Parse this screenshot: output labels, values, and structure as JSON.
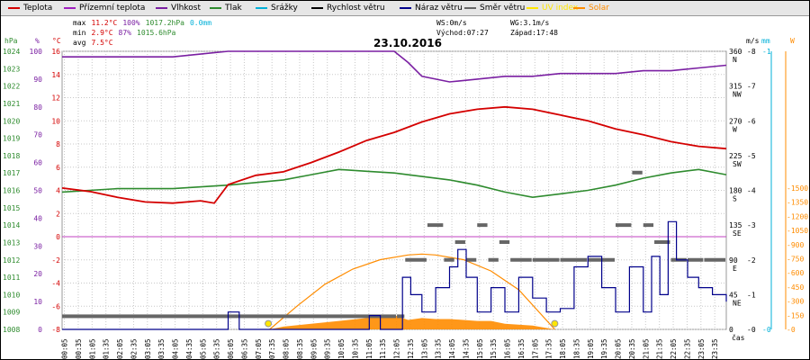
{
  "legend": [
    {
      "label": "Teplota",
      "color": "#d40000"
    },
    {
      "label": "Přízemní teplota",
      "color": "#a020c0"
    },
    {
      "label": "Vlhkost",
      "color": "#7a1fa2"
    },
    {
      "label": "Tlak",
      "color": "#2e8b2e"
    },
    {
      "label": "Srážky",
      "color": "#00b0d8"
    },
    {
      "label": "Rychlost větru",
      "color": "#000000"
    },
    {
      "label": "Náraz větru",
      "color": "#00008b"
    },
    {
      "label": "Směr větru",
      "color": "#666666"
    },
    {
      "label": "UV index",
      "color": "#ffe600"
    },
    {
      "label": "Solar",
      "color": "#ff8c00"
    }
  ],
  "stats": {
    "max": {
      "label": "max",
      "temp": "11.2°C",
      "hum": "100%",
      "press": "1017.2hPa",
      "rain": "0.0mm"
    },
    "min": {
      "label": "min",
      "temp": "2.9°C",
      "hum": "87%",
      "press": "1015.6hPa"
    },
    "avg": {
      "label": "avg",
      "temp": "7.5°C"
    },
    "ws": "WS:0m/s",
    "wg": "WG:3.1m/s",
    "sunrise": "Východ:07:27",
    "sunset": "Západ:17:48"
  },
  "chart_data": {
    "type": "line",
    "title": "23.10.2016",
    "x_unit_label": "čas",
    "time_ticks": [
      "00:05",
      "00:35",
      "01:05",
      "01:35",
      "02:05",
      "02:35",
      "03:05",
      "03:35",
      "04:05",
      "04:35",
      "05:05",
      "05:35",
      "06:05",
      "06:35",
      "07:05",
      "07:35",
      "08:05",
      "08:35",
      "09:05",
      "09:35",
      "10:05",
      "10:35",
      "11:05",
      "11:35",
      "12:05",
      "12:35",
      "13:05",
      "13:35",
      "14:05",
      "14:35",
      "15:05",
      "15:35",
      "16:05",
      "16:35",
      "17:05",
      "17:35",
      "18:05",
      "18:35",
      "19:05",
      "19:35",
      "20:05",
      "20:35",
      "21:05",
      "21:35",
      "22:05",
      "22:35",
      "23:05",
      "23:35"
    ],
    "axes": {
      "pressure_hpa": {
        "label": "hPa",
        "min": 1008,
        "max": 1024,
        "ticks": [
          "1024",
          "1023",
          "1022",
          "1021",
          "1020",
          "1019",
          "1018",
          "1017",
          "1016",
          "1015",
          "1014",
          "1013",
          "1012",
          "1011",
          "1010",
          "1009",
          "1008"
        ],
        "color": "#2e8b2e"
      },
      "humidity_pct": {
        "label": "%",
        "ticks": [
          "100",
          "90",
          "80",
          "70",
          "60",
          "50",
          "40",
          "30",
          "20",
          "10",
          "0"
        ],
        "color": "#7a1fa2"
      },
      "temperature_c": {
        "label": "°C",
        "min": -8,
        "max": 16,
        "ticks": [
          "16",
          "14",
          "12",
          "10",
          "8",
          "6",
          "4",
          "2",
          "0",
          "-2",
          "-4",
          "-6",
          "-8"
        ],
        "color": "#d40000"
      },
      "wind_direction": {
        "ticks": [
          "360",
          "N",
          "315",
          "NW",
          "270",
          "W",
          "225",
          "SW",
          "180",
          "S",
          "135",
          "SE",
          "90",
          "E",
          "45",
          "NE",
          "0"
        ]
      },
      "wind_speed_ms": {
        "label": "m/s",
        "ticks": [
          "8",
          "7",
          "6",
          "5",
          "4",
          "3",
          "2",
          "1",
          "0"
        ]
      },
      "rain_mm": {
        "label": "mm",
        "ticks": [
          "1",
          "0"
        ],
        "color": "#00b0d8"
      },
      "solar_w": {
        "label": "W",
        "ticks": [
          "1500",
          "1350",
          "1200",
          "1050",
          "900",
          "750",
          "600",
          "450",
          "300",
          "150",
          "0"
        ],
        "color": "#ff8c00"
      }
    },
    "series": [
      {
        "name": "Teplota",
        "unit": "°C",
        "color": "#d40000",
        "hours": [
          0,
          1,
          2,
          3,
          4,
          5,
          5.5,
          6,
          7,
          8,
          9,
          10,
          11,
          12,
          13,
          14,
          15,
          16,
          17,
          18,
          19,
          20,
          21,
          22,
          23,
          24
        ],
        "values": [
          4.2,
          3.9,
          3.4,
          3.0,
          2.9,
          3.1,
          2.9,
          4.5,
          5.3,
          5.6,
          6.4,
          7.3,
          8.3,
          9.0,
          9.9,
          10.6,
          11.0,
          11.2,
          11.0,
          10.5,
          10.0,
          9.3,
          8.8,
          8.2,
          7.8,
          7.6
        ]
      },
      {
        "name": "Vlhkost",
        "unit": "%",
        "color": "#7a1fa2",
        "hours": [
          0,
          2,
          4,
          5,
          6,
          8,
          10,
          12,
          12.5,
          13,
          14,
          15,
          16,
          17,
          18,
          19,
          20,
          21,
          22,
          23,
          24
        ],
        "values": [
          98,
          98,
          98,
          99,
          100,
          100,
          100,
          100,
          96,
          91,
          89,
          90,
          91,
          91,
          92,
          92,
          92,
          93,
          93,
          94,
          95
        ]
      },
      {
        "name": "Tlak",
        "unit": "hPa",
        "color": "#2e8b2e",
        "hours": [
          0,
          2,
          4,
          6,
          8,
          9,
          10,
          11,
          12,
          13,
          14,
          15,
          16,
          17,
          18,
          19,
          20,
          21,
          22,
          23,
          24
        ],
        "values": [
          1015.9,
          1016.1,
          1016.1,
          1016.3,
          1016.6,
          1016.9,
          1017.2,
          1017.1,
          1017.0,
          1016.8,
          1016.6,
          1016.3,
          1015.9,
          1015.6,
          1015.8,
          1016.0,
          1016.3,
          1016.7,
          1017.0,
          1017.2,
          1016.9
        ]
      },
      {
        "name": "Náraz větru",
        "unit": "m/s",
        "color": "#00008b",
        "hours": [
          0,
          5.9,
          6.0,
          6.3,
          6.4,
          11.0,
          11.1,
          11.4,
          11.5,
          12.0,
          12.3,
          12.6,
          13.0,
          13.5,
          14.0,
          14.3,
          14.6,
          15.0,
          15.5,
          16.0,
          16.5,
          17.0,
          17.5,
          18.0,
          18.5,
          19.0,
          19.5,
          20.0,
          20.5,
          21.0,
          21.3,
          21.6,
          21.9,
          22.2,
          22.6,
          23.0,
          23.5,
          24.0
        ],
        "values": [
          0,
          0,
          0.5,
          0.5,
          0,
          0,
          0.4,
          0.4,
          0,
          0,
          1.5,
          1.0,
          0.5,
          1.2,
          1.8,
          2.3,
          1.5,
          0.5,
          1.2,
          0.5,
          1.5,
          0.9,
          0.5,
          0.6,
          1.8,
          2.1,
          1.2,
          0.5,
          1.8,
          0.5,
          2.1,
          1.0,
          3.1,
          2.0,
          1.5,
          1.2,
          1.0,
          0.8
        ]
      },
      {
        "name": "Směr větru",
        "unit": "°",
        "color": "#666666",
        "hours": [
          0,
          12.1,
          12.4,
          13.2,
          13.8,
          14.2,
          14.6,
          15.0,
          15.4,
          15.8,
          16.2,
          17.0,
          18.0,
          19.0,
          20.0,
          20.6,
          21.0,
          21.4,
          22.0,
          22.6,
          23.2,
          24.0
        ],
        "values": [
          17,
          17,
          90,
          135,
          90,
          113,
          90,
          135,
          90,
          113,
          90,
          90,
          90,
          90,
          135,
          203,
          135,
          113,
          90,
          90,
          90,
          90
        ]
      },
      {
        "name": "Solar",
        "unit": "W",
        "color": "#ff8c00",
        "hours": [
          7.5,
          8,
          9,
          10,
          11,
          12,
          12.5,
          13,
          13.5,
          14,
          14.5,
          15,
          15.5,
          16,
          17,
          17.8
        ],
        "values": [
          0,
          30,
          60,
          90,
          120,
          150,
          100,
          120,
          110,
          110,
          100,
          90,
          90,
          60,
          40,
          0
        ]
      },
      {
        "name": "Solar (teoretický)",
        "unit": "W",
        "color": "#ff8c00",
        "hours": [
          7.5,
          8.5,
          9.5,
          10.5,
          11.5,
          12.5,
          13,
          13.5,
          14.5,
          15.5,
          16.5,
          17.8
        ],
        "values": [
          0,
          250,
          480,
          640,
          740,
          790,
          800,
          790,
          740,
          620,
          420,
          0
        ]
      },
      {
        "name": "Východ/Západ slunce",
        "hours": [
          7.45,
          17.8
        ],
        "values": [
          "07:27",
          "17:48"
        ]
      }
    ]
  }
}
